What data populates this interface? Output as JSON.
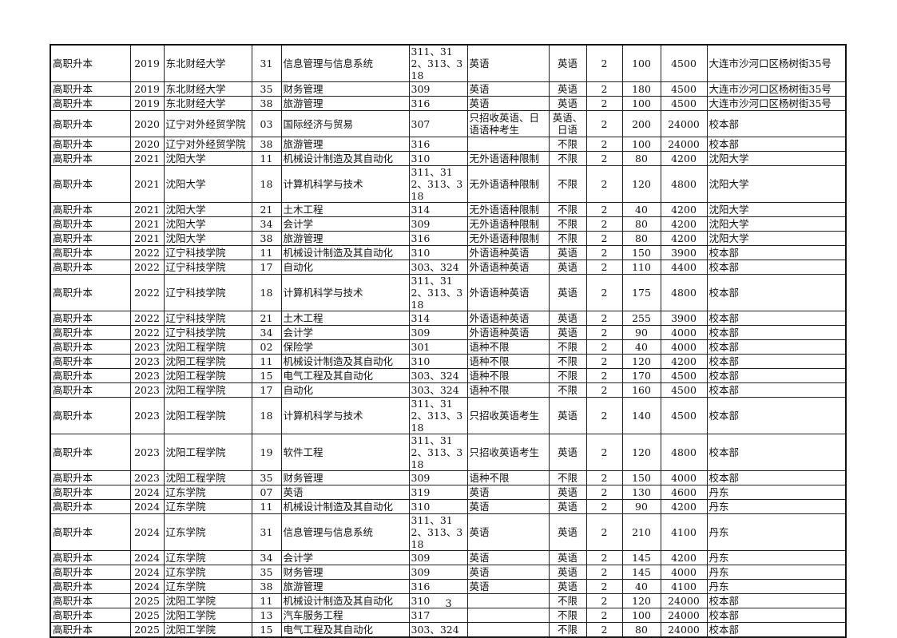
{
  "rows": [
    [
      "高职升本",
      "2019",
      "东北财经大学",
      "31",
      "信息管理与信息系统",
      "311、312、313、318",
      "英语",
      "英语",
      "2",
      "100",
      "4500",
      "大连市沙河口区杨树街35号"
    ],
    [
      "高职升本",
      "2019",
      "东北财经大学",
      "35",
      "财务管理",
      "309",
      "英语",
      "英语",
      "2",
      "180",
      "4500",
      "大连市沙河口区杨树街35号"
    ],
    [
      "高职升本",
      "2019",
      "东北财经大学",
      "38",
      "旅游管理",
      "316",
      "英语",
      "英语",
      "2",
      "100",
      "4500",
      "大连市沙河口区杨树街35号"
    ],
    [
      "高职升本",
      "2020",
      "辽宁对外经贸学院",
      "03",
      "国际经济与贸易",
      "307",
      "只招收英语、日语语种考生",
      "英语、日语",
      "2",
      "200",
      "24000",
      "校本部"
    ],
    [
      "高职升本",
      "2020",
      "辽宁对外经贸学院",
      "38",
      "旅游管理",
      "316",
      "",
      "不限",
      "2",
      "100",
      "24000",
      "校本部"
    ],
    [
      "高职升本",
      "2021",
      "沈阳大学",
      "11",
      "机械设计制造及其自动化",
      "310",
      "无外语语种限制",
      "不限",
      "2",
      "80",
      "4200",
      "沈阳大学"
    ],
    [
      "高职升本",
      "2021",
      "沈阳大学",
      "18",
      "计算机科学与技术",
      "311、312、313、318",
      "无外语语种限制",
      "不限",
      "2",
      "120",
      "4800",
      "沈阳大学"
    ],
    [
      "高职升本",
      "2021",
      "沈阳大学",
      "21",
      "土木工程",
      "314",
      "无外语语种限制",
      "不限",
      "2",
      "40",
      "4200",
      "沈阳大学"
    ],
    [
      "高职升本",
      "2021",
      "沈阳大学",
      "34",
      "会计学",
      "309",
      "无外语语种限制",
      "不限",
      "2",
      "80",
      "4200",
      "沈阳大学"
    ],
    [
      "高职升本",
      "2021",
      "沈阳大学",
      "38",
      "旅游管理",
      "316",
      "无外语语种限制",
      "不限",
      "2",
      "80",
      "4200",
      "沈阳大学"
    ],
    [
      "高职升本",
      "2022",
      "辽宁科技学院",
      "11",
      "机械设计制造及其自动化",
      "310",
      "外语语种英语",
      "英语",
      "2",
      "150",
      "3900",
      "校本部"
    ],
    [
      "高职升本",
      "2022",
      "辽宁科技学院",
      "17",
      "自动化",
      "303、324",
      "外语语种英语",
      "英语",
      "2",
      "110",
      "4400",
      "校本部"
    ],
    [
      "高职升本",
      "2022",
      "辽宁科技学院",
      "18",
      "计算机科学与技术",
      "311、312、313、318",
      "外语语种英语",
      "英语",
      "2",
      "175",
      "4800",
      "校本部"
    ],
    [
      "高职升本",
      "2022",
      "辽宁科技学院",
      "21",
      "土木工程",
      "314",
      "外语语种英语",
      "英语",
      "2",
      "255",
      "3900",
      "校本部"
    ],
    [
      "高职升本",
      "2022",
      "辽宁科技学院",
      "34",
      "会计学",
      "309",
      "外语语种英语",
      "英语",
      "2",
      "90",
      "4000",
      "校本部"
    ],
    [
      "高职升本",
      "2023",
      "沈阳工程学院",
      "02",
      "保险学",
      "301",
      "语种不限",
      "不限",
      "2",
      "40",
      "4000",
      "校本部"
    ],
    [
      "高职升本",
      "2023",
      "沈阳工程学院",
      "11",
      "机械设计制造及其自动化",
      "310",
      "语种不限",
      "不限",
      "2",
      "120",
      "4200",
      "校本部"
    ],
    [
      "高职升本",
      "2023",
      "沈阳工程学院",
      "15",
      "电气工程及其自动化",
      "303、324",
      "语种不限",
      "不限",
      "2",
      "170",
      "4500",
      "校本部"
    ],
    [
      "高职升本",
      "2023",
      "沈阳工程学院",
      "17",
      "自动化",
      "303、324",
      "语种不限",
      "不限",
      "2",
      "160",
      "4500",
      "校本部"
    ],
    [
      "高职升本",
      "2023",
      "沈阳工程学院",
      "18",
      "计算机科学与技术",
      "311、312、313、318",
      "只招收英语考生",
      "英语",
      "2",
      "140",
      "4500",
      "校本部"
    ],
    [
      "高职升本",
      "2023",
      "沈阳工程学院",
      "19",
      "软件工程",
      "311、312、313、318",
      "只招收英语考生",
      "英语",
      "2",
      "120",
      "4800",
      "校本部"
    ],
    [
      "高职升本",
      "2023",
      "沈阳工程学院",
      "35",
      "财务管理",
      "309",
      "语种不限",
      "不限",
      "2",
      "150",
      "4000",
      "校本部"
    ],
    [
      "高职升本",
      "2024",
      "辽东学院",
      "07",
      "英语",
      "319",
      "英语",
      "英语",
      "2",
      "130",
      "4600",
      "丹东"
    ],
    [
      "高职升本",
      "2024",
      "辽东学院",
      "11",
      "机械设计制造及其自动化",
      "310",
      "英语",
      "英语",
      "2",
      "90",
      "4200",
      "丹东"
    ],
    [
      "高职升本",
      "2024",
      "辽东学院",
      "31",
      "信息管理与信息系统",
      "311、312、313、318",
      "英语",
      "英语",
      "2",
      "210",
      "4100",
      "丹东"
    ],
    [
      "高职升本",
      "2024",
      "辽东学院",
      "34",
      "会计学",
      "309",
      "英语",
      "英语",
      "2",
      "145",
      "4200",
      "丹东"
    ],
    [
      "高职升本",
      "2024",
      "辽东学院",
      "35",
      "财务管理",
      "309",
      "英语",
      "英语",
      "2",
      "145",
      "4000",
      "丹东"
    ],
    [
      "高职升本",
      "2024",
      "辽东学院",
      "38",
      "旅游管理",
      "316",
      "英语",
      "英语",
      "2",
      "40",
      "4100",
      "丹东"
    ],
    [
      "高职升本",
      "2025",
      "沈阳工学院",
      "11",
      "机械设计制造及其自动化",
      "310",
      "",
      "不限",
      "2",
      "120",
      "24000",
      "校本部"
    ],
    [
      "高职升本",
      "2025",
      "沈阳工学院",
      "13",
      "汽车服务工程",
      "317",
      "",
      "不限",
      "2",
      "100",
      "24000",
      "校本部"
    ],
    [
      "高职升本",
      "2025",
      "沈阳工学院",
      "15",
      "电气工程及其自动化",
      "303、324",
      "",
      "不限",
      "2",
      "80",
      "24000",
      "校本部"
    ]
  ],
  "page_number": "3"
}
